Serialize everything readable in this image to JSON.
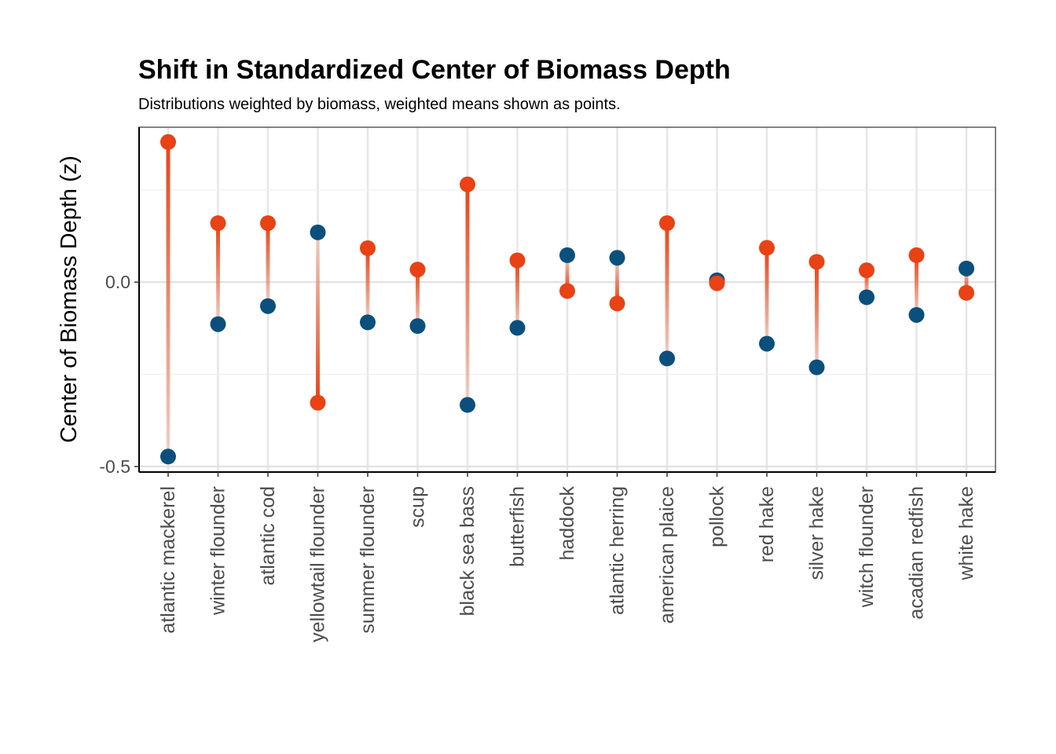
{
  "chart_data": {
    "type": "scatter",
    "title": "Shift in Standardized Center of Biomass Depth",
    "subtitle": "Distributions weighted by biomass, weighted means shown as points.",
    "xlabel": "",
    "ylabel": "Center of Biomass Depth (z)",
    "ylim": [
      -0.515,
      0.42
    ],
    "y_ticks": [
      0.0,
      -0.5
    ],
    "y_tick_labels": [
      "0.0",
      "-0.5"
    ],
    "grid": true,
    "legend": "none",
    "colors": {
      "early": "#0b4f7c",
      "late": "#e84215",
      "segment": "#e84215"
    },
    "categories": [
      "atlantic mackerel",
      "winter flounder",
      "atlantic cod",
      "yellowtail flounder",
      "summer flounder",
      "scup",
      "black sea bass",
      "butterfish",
      "haddock",
      "atlantic herring",
      "american plaice",
      "pollock",
      "red hake",
      "silver hake",
      "witch flounder",
      "acadian redfish",
      "white hake"
    ],
    "series": [
      {
        "values": [
          -0.473,
          -0.114,
          -0.065,
          0.135,
          -0.109,
          -0.119,
          -0.333,
          -0.124,
          0.073,
          0.066,
          -0.207,
          0.005,
          -0.167,
          -0.231,
          -0.041,
          -0.089,
          0.037
        ]
      },
      {
        "values": [
          0.38,
          0.16,
          0.16,
          -0.327,
          0.092,
          0.034,
          0.265,
          0.059,
          -0.024,
          -0.058,
          0.16,
          -0.003,
          0.093,
          0.055,
          0.032,
          0.073,
          -0.029
        ]
      }
    ]
  }
}
